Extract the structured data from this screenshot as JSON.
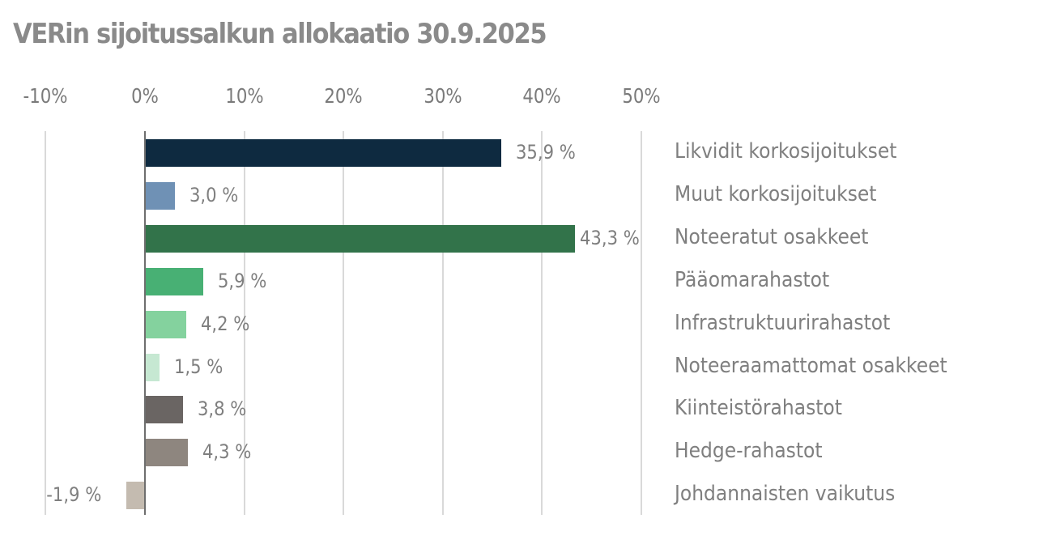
{
  "title": "VERin sijoitussalkun allokaatio 30.9.2025",
  "axis": {
    "ticks": [
      "-10%",
      "0%",
      "10%",
      "20%",
      "30%",
      "40%",
      "50%"
    ],
    "tick_values": [
      -10,
      0,
      10,
      20,
      30,
      40,
      50
    ]
  },
  "rows": [
    {
      "label": "Likvidit korkosijoitukset",
      "value": 35.9,
      "value_label": "35,9 %",
      "color": "#0e2a40"
    },
    {
      "label": "Muut korkosijoitukset",
      "value": 3.0,
      "value_label": "3,0 %",
      "color": "#6f91b5"
    },
    {
      "label": "Noteeratut osakkeet",
      "value": 43.3,
      "value_label": "43,3 %",
      "color": "#32734a"
    },
    {
      "label": "Pääomarahastot",
      "value": 5.9,
      "value_label": "5,9 %",
      "color": "#48b074"
    },
    {
      "label": "Infrastruktuurirahastot",
      "value": 4.2,
      "value_label": "4,2 %",
      "color": "#84d29e"
    },
    {
      "label": "Noteeraamattomat osakkeet",
      "value": 1.5,
      "value_label": "1,5 %",
      "color": "#c6e8d2"
    },
    {
      "label": "Kiinteistörahastot",
      "value": 3.8,
      "value_label": "3,8 %",
      "color": "#6a6563"
    },
    {
      "label": "Hedge-rahastot",
      "value": 4.3,
      "value_label": "4,3 %",
      "color": "#8e867f"
    },
    {
      "label": "Johdannaisten vaikutus",
      "value": -1.9,
      "value_label": "-1,9 %",
      "color": "#c4bbb0"
    }
  ],
  "chart_data": {
    "type": "bar",
    "orientation": "horizontal",
    "title": "VERin sijoitussalkun allokaatio 30.9.2025",
    "categories": [
      "Likvidit korkosijoitukset",
      "Muut korkosijoitukset",
      "Noteeratut osakkeet",
      "Pääomarahastot",
      "Infrastruktuurirahastot",
      "Noteeraamattomat osakkeet",
      "Kiinteistörahastot",
      "Hedge-rahastot",
      "Johdannaisten vaikutus"
    ],
    "values": [
      35.9,
      3.0,
      43.3,
      5.9,
      4.2,
      1.5,
      3.8,
      4.3,
      -1.9
    ],
    "data_labels": [
      "35,9 %",
      "3,0 %",
      "43,3 %",
      "5,9 %",
      "4,2 %",
      "1,5 %",
      "3,8 %",
      "4,3 %",
      "-1,9 %"
    ],
    "xlabel": "",
    "ylabel": "",
    "xlim": [
      -10,
      50
    ],
    "xticks": [
      "-10%",
      "0%",
      "10%",
      "20%",
      "30%",
      "40%",
      "50%"
    ],
    "xaxis_position": "top",
    "grid": "vertical",
    "legend": "none (category labels on right)"
  }
}
